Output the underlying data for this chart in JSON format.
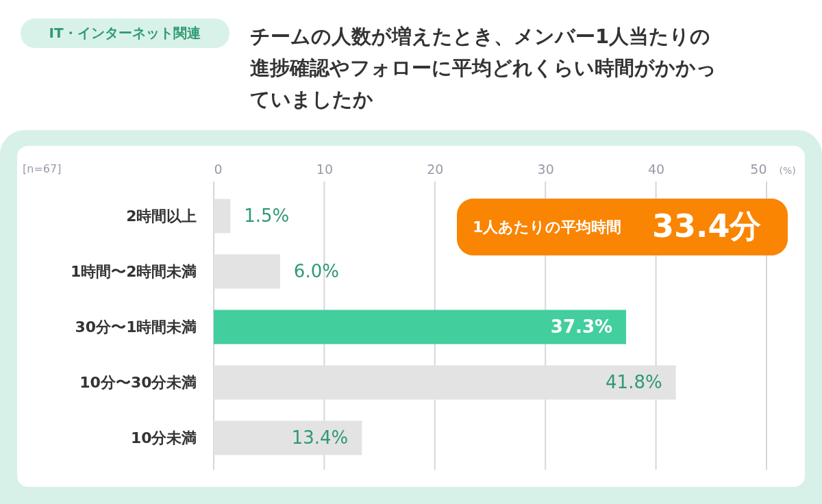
{
  "chart_data": {
    "type": "bar",
    "orientation": "horizontal",
    "title": "チームの人数が増えたとき、メンバー1人当たりの進捗確認やフォローに平均どれくらい時間がかかっていましたか",
    "subtitle": "IT・インターネット関連",
    "xlabel": "(%)",
    "categories": [
      "2時間以上",
      "1時間〜2時間未満",
      "30分〜1時間未満",
      "10分〜30分未満",
      "10分未満"
    ],
    "values": [
      1.5,
      6.0,
      37.3,
      41.8,
      13.4
    ],
    "colors": [
      "#e3e3e3",
      "#e3e3e3",
      "#43ce9e",
      "#e3e3e3",
      "#e3e3e3"
    ],
    "value_labels": [
      "1.5%",
      "6.0%",
      "37.3%",
      "41.8%",
      "13.4%"
    ],
    "xlim": [
      0,
      50
    ],
    "xticks": [
      0,
      10,
      20,
      30,
      40,
      50
    ],
    "grid": "x",
    "annotations": [
      "[n=67]",
      "1人あたりの平均時間",
      "33.4分"
    ]
  }
}
